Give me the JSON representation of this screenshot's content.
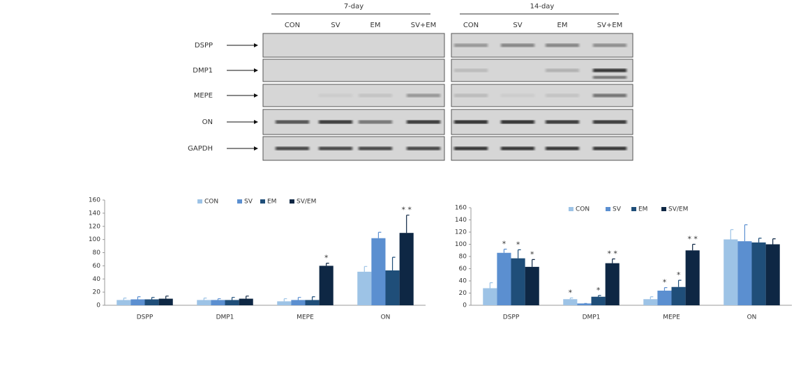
{
  "gel": {
    "groups": [
      {
        "title": "7-day",
        "lanes": [
          "CON",
          "SV",
          "EM",
          "SV+EM"
        ]
      },
      {
        "title": "14-day",
        "lanes": [
          "CON",
          "SV",
          "EM",
          "SV+EM"
        ]
      }
    ],
    "rows": [
      "DSPP",
      "DMP1",
      "MEPE",
      "ON",
      "GAPDH"
    ]
  },
  "chart_data": [
    {
      "type": "bar",
      "categories": [
        "DSPP",
        "DMP1",
        "MEPE",
        "ON"
      ],
      "ylim": [
        0,
        160
      ],
      "yticks": [
        0,
        20,
        40,
        60,
        80,
        100,
        120,
        140,
        160
      ],
      "grid": false,
      "legend": "top",
      "series": [
        {
          "name": "CON",
          "color": "#9dc3e6",
          "values": [
            8,
            8,
            6,
            51
          ],
          "errors": [
            3,
            3,
            4,
            8
          ],
          "significance": [
            null,
            null,
            null,
            null
          ]
        },
        {
          "name": "SV",
          "color": "#5b8fd0",
          "values": [
            9,
            8,
            8,
            102
          ],
          "errors": [
            4,
            2,
            4,
            9
          ],
          "significance": [
            null,
            null,
            null,
            null
          ]
        },
        {
          "name": "EM",
          "color": "#1f4e79",
          "values": [
            9,
            8,
            8,
            53
          ],
          "errors": [
            3,
            4,
            5,
            20
          ],
          "significance": [
            null,
            null,
            null,
            null
          ]
        },
        {
          "name": "SV/EM",
          "color": "#0e2744",
          "values": [
            10,
            10,
            60,
            110
          ],
          "errors": [
            4,
            4,
            4,
            27
          ],
          "significance": [
            null,
            null,
            "*",
            "* *"
          ]
        }
      ]
    },
    {
      "type": "bar",
      "categories": [
        "DSPP",
        "DMP1",
        "MEPE",
        "ON"
      ],
      "ylim": [
        0,
        160
      ],
      "yticks": [
        0,
        20,
        40,
        60,
        80,
        100,
        120,
        140,
        160
      ],
      "grid": false,
      "legend": "top",
      "series": [
        {
          "name": "CON",
          "color": "#9dc3e6",
          "values": [
            28,
            10,
            10,
            108
          ],
          "errors": [
            9,
            2,
            4,
            16
          ],
          "significance": [
            null,
            "*",
            null,
            null
          ]
        },
        {
          "name": "SV",
          "color": "#5b8fd0",
          "values": [
            86,
            3,
            24,
            105
          ],
          "errors": [
            6,
            0,
            5,
            27
          ],
          "significance": [
            "*",
            null,
            "*",
            null
          ]
        },
        {
          "name": "EM",
          "color": "#1f4e79",
          "values": [
            77,
            14,
            30,
            103
          ],
          "errors": [
            14,
            2,
            11,
            7
          ],
          "significance": [
            "*",
            "*",
            "*",
            null
          ]
        },
        {
          "name": "SV/EM",
          "color": "#0e2744",
          "values": [
            63,
            69,
            90,
            100
          ],
          "errors": [
            12,
            7,
            10,
            9
          ],
          "significance": [
            "*",
            "* *",
            "* *",
            null
          ]
        }
      ]
    }
  ]
}
